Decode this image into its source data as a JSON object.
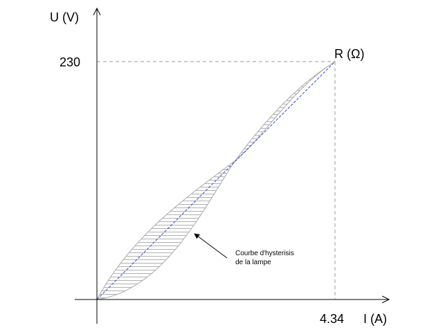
{
  "axes": {
    "y_label": "U (V)",
    "x_label": "I (A)",
    "y_value": 230,
    "x_value": 4.34,
    "point_label": "R (Ω)"
  },
  "annotation": [
    "Courbe d'hysterisis",
    "de la lampe"
  ]
}
